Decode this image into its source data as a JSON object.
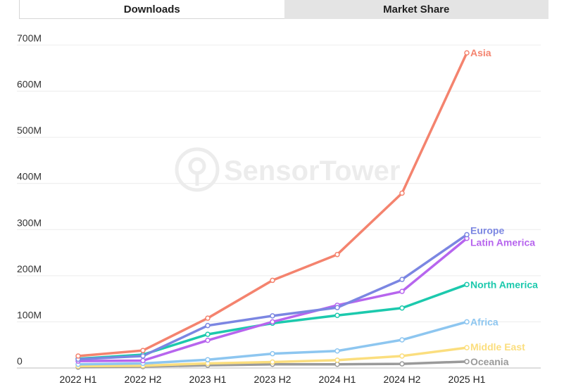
{
  "tabs": [
    {
      "label": "Downloads",
      "active": true
    },
    {
      "label": "Market Share",
      "active": false
    }
  ],
  "watermark": "SensorTower",
  "chart_data": {
    "type": "line",
    "title": "",
    "xlabel": "",
    "ylabel": "",
    "categories": [
      "2022 H1",
      "2022 H2",
      "2023 H1",
      "2023 H2",
      "2024 H1",
      "2024 H2",
      "2025 H1"
    ],
    "ylim": [
      0,
      700
    ],
    "yticks": [
      0,
      100,
      200,
      300,
      400,
      500,
      600,
      700
    ],
    "ytick_labels": [
      "0",
      "100M",
      "200M",
      "300M",
      "400M",
      "500M",
      "600M",
      "700M"
    ],
    "grid": true,
    "legend": "end-of-line labels",
    "series": [
      {
        "name": "Asia",
        "color": "#f4836e",
        "values": [
          26,
          38,
          108,
          190,
          246,
          379,
          683
        ]
      },
      {
        "name": "Europe",
        "color": "#7b86e2",
        "values": [
          19,
          26,
          92,
          113,
          131,
          192,
          289
        ]
      },
      {
        "name": "Latin America",
        "color": "#b765ee",
        "values": [
          15,
          16,
          60,
          100,
          136,
          166,
          281
        ]
      },
      {
        "name": "North America",
        "color": "#1cc9ad",
        "values": [
          20,
          29,
          73,
          97,
          114,
          130,
          181
        ]
      },
      {
        "name": "Africa",
        "color": "#8dc6f0",
        "values": [
          8,
          10,
          18,
          31,
          37,
          61,
          100
        ]
      },
      {
        "name": "Middle East",
        "color": "#fbde7e",
        "values": [
          4,
          5,
          10,
          13,
          17,
          26,
          44
        ]
      },
      {
        "name": "Oceania",
        "color": "#9a9a9a",
        "values": [
          2,
          3,
          6,
          8,
          8,
          9,
          14
        ]
      }
    ]
  }
}
